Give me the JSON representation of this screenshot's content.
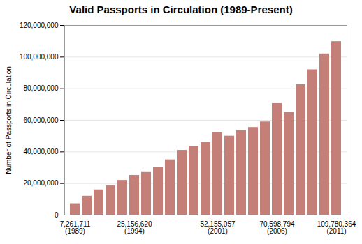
{
  "chart_data": {
    "type": "bar",
    "title": "Valid Passports in Circulation (1989-Present)",
    "ylabel": "Number of Passports in Circulation",
    "categories": [
      "7,261,711\n(1989)",
      null,
      null,
      null,
      null,
      "25,156,620\n(1994)",
      null,
      null,
      null,
      null,
      null,
      null,
      "52,155,057\n(2001)",
      null,
      null,
      null,
      null,
      "70,598,794\n(2006)",
      null,
      null,
      null,
      null,
      "109,780,364\n(2011)"
    ],
    "values": [
      7261711,
      12000000,
      16000000,
      18500000,
      22000000,
      25156620,
      27000000,
      30000000,
      35000000,
      41000000,
      43500000,
      46000000,
      52155057,
      50000000,
      53500000,
      55500000,
      59000000,
      70598794,
      65000000,
      82500000,
      92000000,
      102000000,
      109780364
    ],
    "color": "#c47f78",
    "ylim": [
      0,
      120000000
    ],
    "yticks": [
      0,
      {
        "value": 20000000,
        "label": "20,000,000"
      },
      {
        "value": 40000000,
        "label": "40,000,000"
      },
      {
        "value": 60000000,
        "label": "60,000,000"
      },
      {
        "value": 80000000,
        "label": "80,000,000"
      },
      {
        "value": 100000000,
        "label": "100,000,000"
      },
      {
        "value": 120000000,
        "label": "120,000,000"
      }
    ],
    "grid": true
  }
}
